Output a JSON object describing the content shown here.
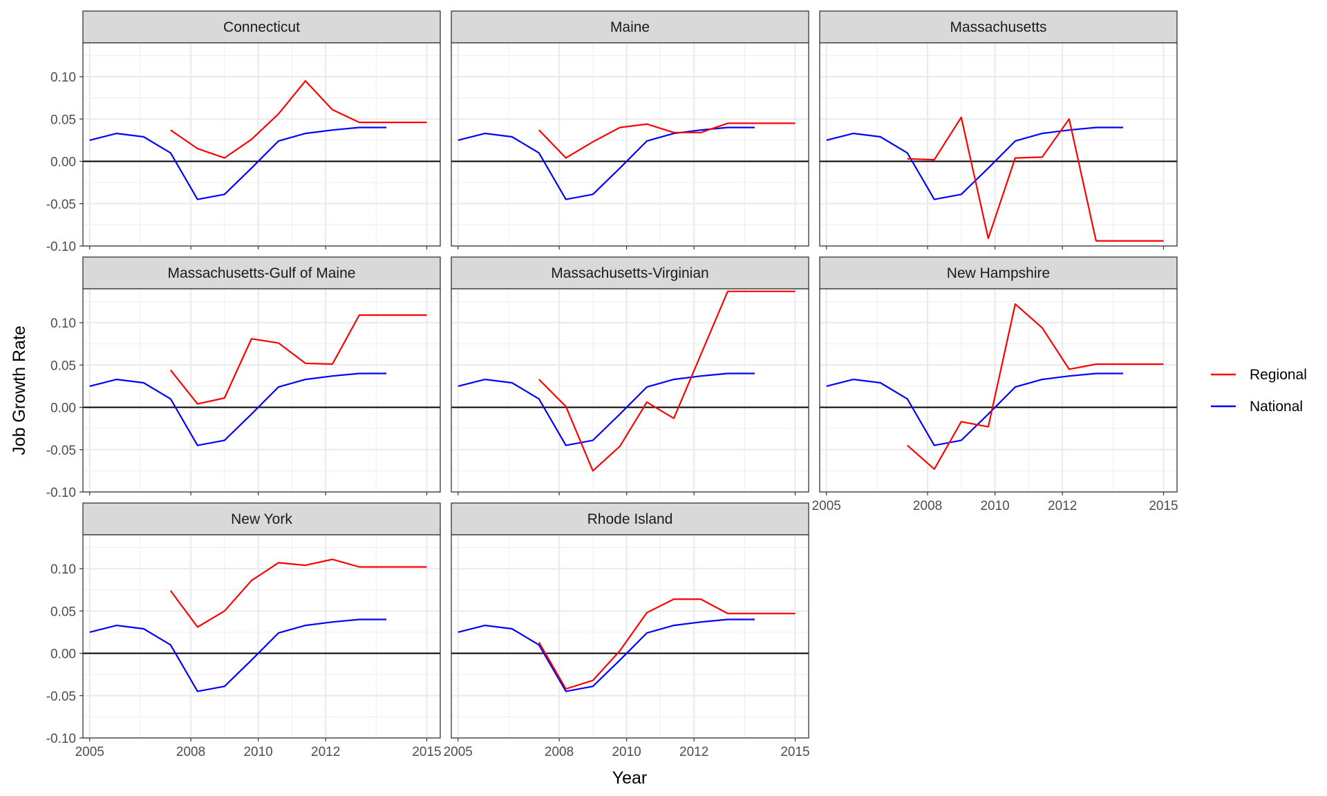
{
  "chart_data": {
    "type": "line",
    "xlabel": "Year",
    "ylabel": "Job Growth Rate",
    "xlim": [
      2004.8,
      2015.4
    ],
    "ylim": [
      -0.1,
      0.14
    ],
    "x_ticks": [
      2005,
      2008,
      2010,
      2012,
      2015
    ],
    "y_ticks": [
      -0.1,
      -0.05,
      0,
      0.05,
      0.1
    ],
    "y_tick_labels": [
      "-0.10",
      "-0.05",
      "0.00",
      "0.05",
      "0.10"
    ],
    "grid": true,
    "reference_line_y": 0,
    "legend_position": "right",
    "legend": [
      {
        "name": "Regional",
        "color": "#ff0000"
      },
      {
        "name": "National",
        "color": "#0000ff"
      }
    ],
    "national": {
      "x": [
        2005,
        2005.8,
        2006.6,
        2007.4,
        2008.2,
        2009,
        2009.8,
        2010.6,
        2011.4,
        2012.2,
        2013,
        2013.8
      ],
      "y": [
        0.025,
        0.033,
        0.029,
        0.01,
        -0.045,
        -0.039,
        -0.008,
        0.024,
        0.033,
        0.037,
        0.04,
        0.04
      ]
    },
    "panels": [
      {
        "title": "Connecticut",
        "x": [
          2007.4,
          2008.2,
          2009,
          2009.8,
          2010.6,
          2011.4,
          2012.2,
          2013,
          2015
        ],
        "y": [
          0.037,
          0.015,
          0.004,
          0.026,
          0.056,
          0.095,
          0.061,
          0.046,
          0.046
        ]
      },
      {
        "title": "Maine",
        "x": [
          2007.4,
          2008.2,
          2009,
          2009.8,
          2010.6,
          2011.4,
          2012.2,
          2013,
          2015
        ],
        "y": [
          0.037,
          0.004,
          0.023,
          0.04,
          0.044,
          0.034,
          0.034,
          0.045,
          0.045
        ]
      },
      {
        "title": "Massachusetts",
        "x": [
          2007.4,
          2008.2,
          2009,
          2009.8,
          2010.6,
          2011.4,
          2012.2,
          2013,
          2015
        ],
        "y": [
          0.003,
          0.002,
          0.052,
          -0.091,
          0.004,
          0.005,
          0.05,
          -0.094,
          -0.094
        ]
      },
      {
        "title": "Massachusetts-Gulf of Maine",
        "x": [
          2007.4,
          2008.2,
          2009,
          2009.8,
          2010.6,
          2011.4,
          2012.2,
          2013,
          2015
        ],
        "y": [
          0.044,
          0.004,
          0.011,
          0.081,
          0.076,
          0.052,
          0.051,
          0.109,
          0.109
        ]
      },
      {
        "title": "Massachusetts-Virginian",
        "x": [
          2007.4,
          2008.2,
          2009,
          2009.8,
          2010.6,
          2011.4,
          2012.2,
          2013,
          2015
        ],
        "y": [
          0.033,
          0.001,
          -0.075,
          -0.046,
          0.006,
          -0.013,
          0.062,
          0.137,
          0.137
        ]
      },
      {
        "title": "New Hampshire",
        "x": [
          2007.4,
          2008.2,
          2009,
          2009.8,
          2010.6,
          2011.4,
          2012.2,
          2013,
          2015
        ],
        "y": [
          -0.045,
          -0.073,
          -0.017,
          -0.023,
          0.122,
          0.094,
          0.045,
          0.051,
          0.051
        ]
      },
      {
        "title": "New York",
        "x": [
          2007.4,
          2008.2,
          2009,
          2009.8,
          2010.6,
          2011.4,
          2012.2,
          2013,
          2015
        ],
        "y": [
          0.074,
          0.031,
          0.05,
          0.086,
          0.107,
          0.104,
          0.111,
          0.102,
          0.102
        ]
      },
      {
        "title": "Rhode Island",
        "x": [
          2007.4,
          2008.2,
          2009,
          2009.8,
          2010.6,
          2011.4,
          2012.2,
          2013,
          2015
        ],
        "y": [
          0.013,
          -0.042,
          -0.032,
          0.003,
          0.048,
          0.064,
          0.064,
          0.047,
          0.047
        ]
      }
    ]
  }
}
